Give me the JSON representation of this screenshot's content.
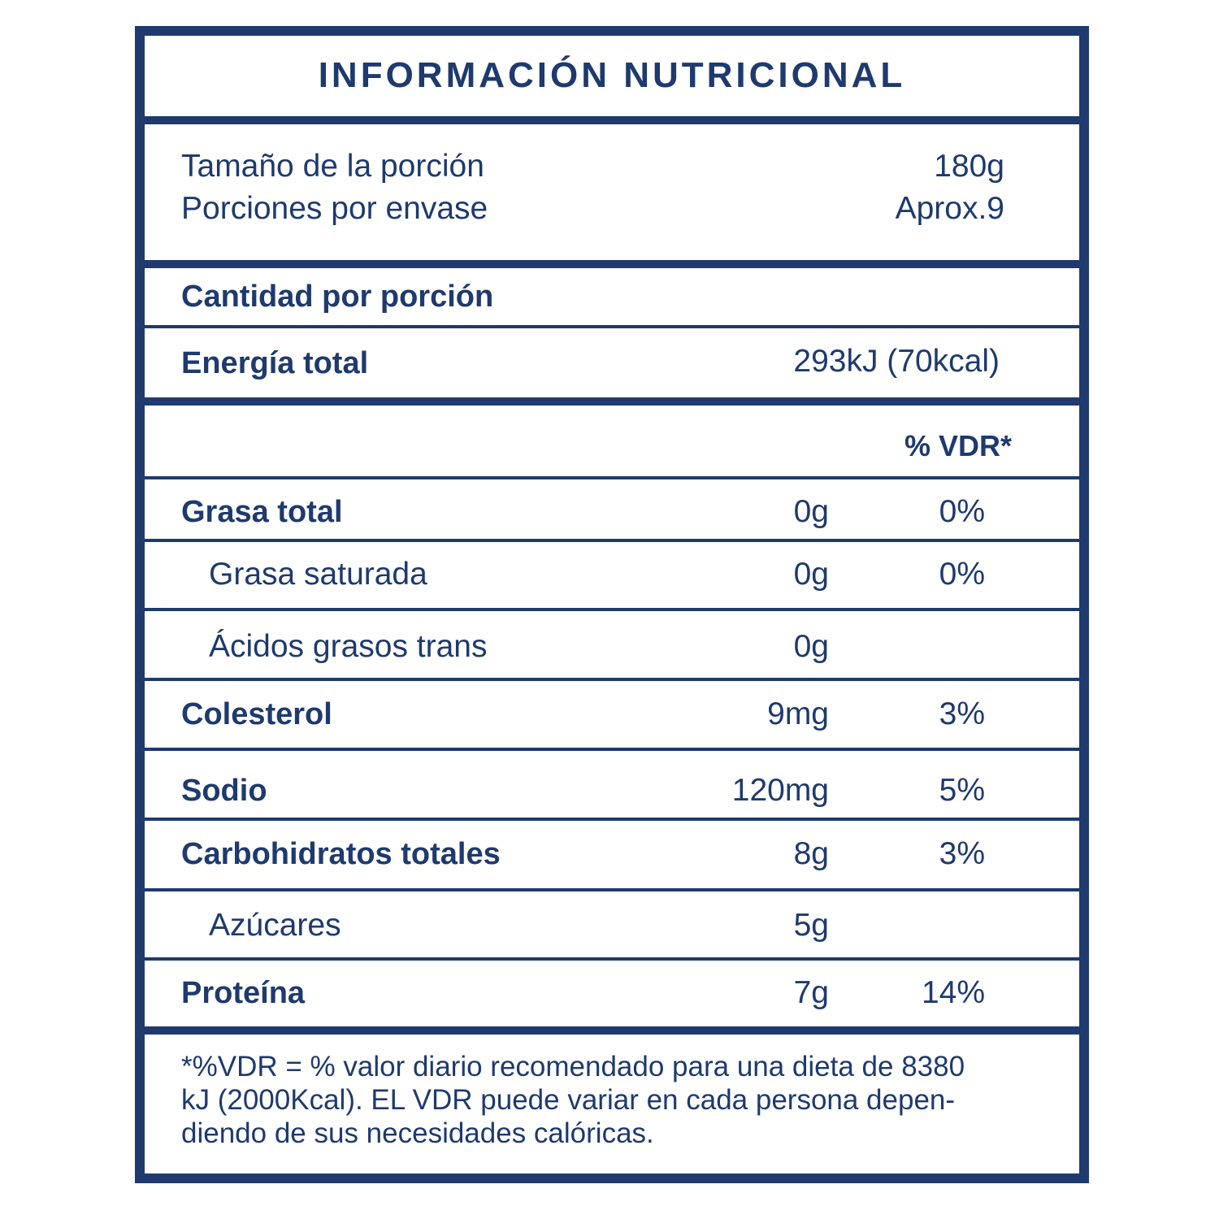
{
  "header": {
    "title": "INFORMACIÓN NUTRICIONAL"
  },
  "serving": [
    {
      "label": "Tamaño de la porción",
      "value": "180g"
    },
    {
      "label": "Porciones por envase",
      "value": "Aprox.9"
    }
  ],
  "amount_per_serving": "Cantidad por porción",
  "energy": {
    "label": "Energía total",
    "value": "293kJ (70kcal)"
  },
  "dv_header": "% VDR*",
  "nutrients": [
    {
      "name": "Grasa total",
      "amount": "0g",
      "dv": "0%",
      "indent": false
    },
    {
      "name": "Grasa saturada",
      "amount": "0g",
      "dv": "0%",
      "indent": true
    },
    {
      "name": "Ácidos grasos trans",
      "amount": "0g",
      "indent": true
    },
    {
      "name": "Colesterol",
      "amount": "9mg",
      "dv": "3%",
      "indent": false
    },
    {
      "name": "Sodio",
      "amount": "120mg",
      "dv": "5%",
      "indent": false
    },
    {
      "name": "Carbohidratos totales",
      "amount": "8g",
      "dv": "3%",
      "indent": false
    },
    {
      "name": "Azúcares",
      "amount": "5g",
      "indent": true
    },
    {
      "name": "Proteína",
      "amount": "7g",
      "dv": "14%",
      "indent": false
    }
  ],
  "footnote": [
    "*%VDR = % valor diario recomendado para una dieta de 8380",
    "kJ (2000Kcal). EL VDR puede variar en cada persona depen-",
    "diendo de sus necesidades calóricas."
  ]
}
